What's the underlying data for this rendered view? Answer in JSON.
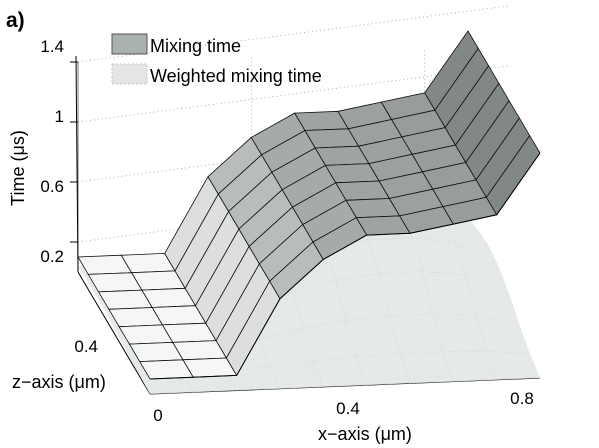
{
  "chart_data": {
    "type": "surface",
    "panel_label": "a)",
    "xlabel": "x−axis (μm)",
    "ylabel": "Time (μs)",
    "zlabel": "z−axis (μm)",
    "x_ticks": [
      "0",
      "0.4",
      "0.8"
    ],
    "z_ticks": [
      "0.4"
    ],
    "y_ticks": [
      "0.2",
      "0.6",
      "1",
      "1.4"
    ],
    "zlim": [
      0,
      1.4
    ],
    "grid": true,
    "legend_position": "top-left",
    "legend": [
      "Mixing time",
      "Weighted mixing time"
    ],
    "x": [
      0,
      0.1,
      0.2,
      0.3,
      0.4,
      0.5,
      0.6,
      0.7,
      0.8,
      0.9
    ],
    "z": [
      0,
      0.1,
      0.2,
      0.3,
      0.4,
      0.5,
      0.6,
      0.7
    ],
    "series": [
      {
        "name": "Mixing time",
        "color": "#5f6565",
        "profile": [
          0.1,
          0.1,
          0.1,
          0.6,
          0.85,
          1.0,
          1.0,
          1.05,
          1.1,
          1.5
        ]
      },
      {
        "name": "Weighted mixing time",
        "color": "#dcdcdc",
        "profile": [
          0.05,
          0.05,
          0.05,
          0.25,
          0.4,
          0.5,
          0.55,
          0.55,
          0.5,
          0.3
        ],
        "z_falloff": [
          0.0,
          0.15,
          0.4,
          0.7,
          0.9,
          1.0,
          0.95,
          0.85
        ]
      }
    ]
  }
}
